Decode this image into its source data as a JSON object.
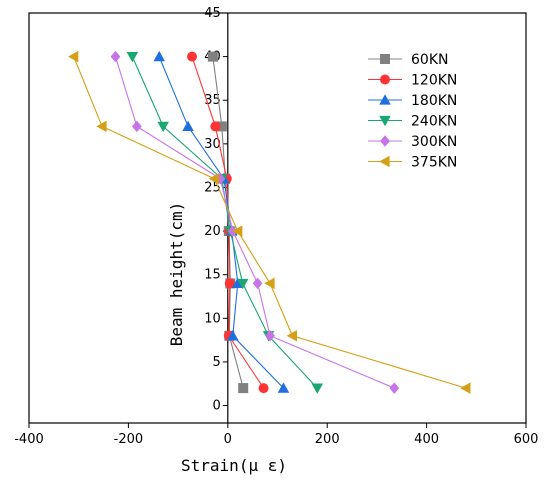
{
  "chart_data": {
    "type": "line",
    "title": "",
    "xlabel": "Strain(μ ε)",
    "ylabel": "Beam height(cm)",
    "xlim": [
      -400,
      600
    ],
    "ylim": [
      -2,
      45
    ],
    "x_ticks": [
      -400,
      -200,
      0,
      200,
      400,
      600
    ],
    "y_ticks": [
      0,
      5,
      10,
      15,
      20,
      25,
      30,
      35,
      40,
      45
    ],
    "grid": false,
    "legend_position": "top-right",
    "series": [
      {
        "name": "60KN",
        "color": "#808080",
        "marker": "square",
        "points": [
          [
            31,
            2
          ],
          [
            3,
            8
          ],
          [
            5,
            14
          ],
          [
            2,
            20
          ],
          [
            -5,
            26
          ],
          [
            -12,
            32
          ],
          [
            -30,
            40
          ]
        ]
      },
      {
        "name": "120KN",
        "color": "#ff3333",
        "marker": "circle",
        "points": [
          [
            72,
            2
          ],
          [
            2,
            8
          ],
          [
            4,
            14
          ],
          [
            3,
            20
          ],
          [
            -2,
            26
          ],
          [
            -25,
            32
          ],
          [
            -72,
            40
          ]
        ]
      },
      {
        "name": "180KN",
        "color": "#1f6fe0",
        "marker": "triangle-up",
        "points": [
          [
            112,
            2
          ],
          [
            10,
            8
          ],
          [
            20,
            14
          ],
          [
            8,
            20
          ],
          [
            -8,
            26
          ],
          [
            -80,
            32
          ],
          [
            -138,
            40
          ]
        ]
      },
      {
        "name": "240KN",
        "color": "#1aa773",
        "marker": "triangle-down",
        "points": [
          [
            180,
            2
          ],
          [
            82,
            8
          ],
          [
            30,
            14
          ],
          [
            5,
            20
          ],
          [
            -12,
            26
          ],
          [
            -130,
            32
          ],
          [
            -192,
            40
          ]
        ]
      },
      {
        "name": "300KN",
        "color": "#c774e8",
        "marker": "diamond",
        "points": [
          [
            335,
            2
          ],
          [
            85,
            8
          ],
          [
            60,
            14
          ],
          [
            10,
            20
          ],
          [
            -15,
            26
          ],
          [
            -183,
            32
          ],
          [
            -226,
            40
          ]
        ]
      },
      {
        "name": "375KN",
        "color": "#d4a017",
        "marker": "triangle-left",
        "points": [
          [
            479,
            2
          ],
          [
            130,
            8
          ],
          [
            85,
            14
          ],
          [
            20,
            20
          ],
          [
            -27,
            26
          ],
          [
            -253,
            32
          ],
          [
            -310,
            40
          ]
        ]
      }
    ]
  }
}
